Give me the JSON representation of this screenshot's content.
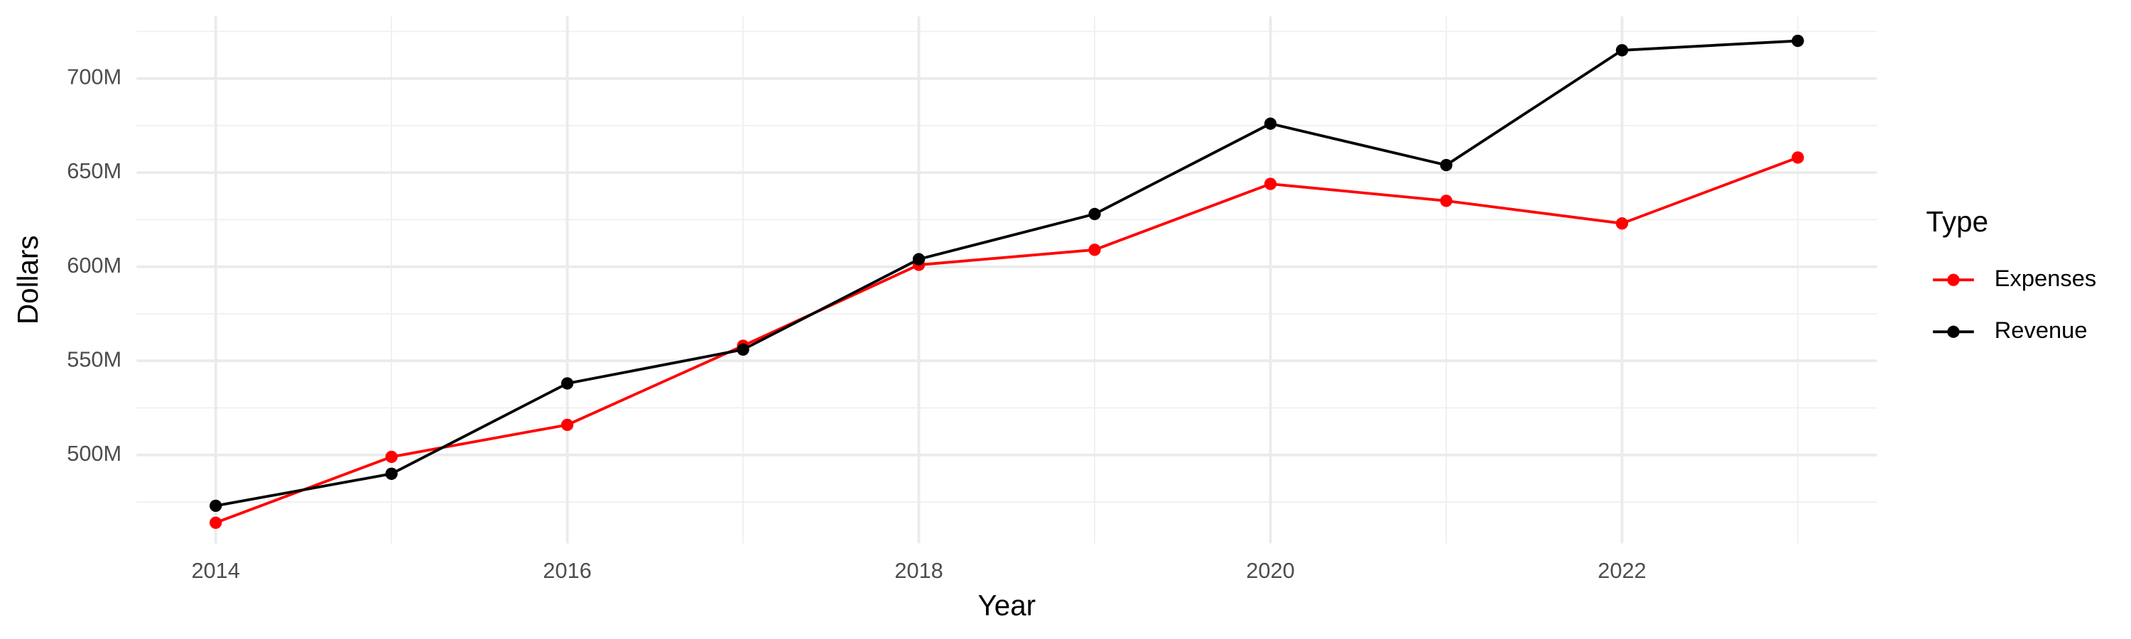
{
  "chart_data": {
    "type": "line",
    "x_label": "Year",
    "y_label": "Dollars",
    "x": [
      2014,
      2015,
      2016,
      2017,
      2018,
      2019,
      2020,
      2021,
      2022,
      2023
    ],
    "series": [
      {
        "name": "Expenses",
        "color": "#ff0000",
        "values": [
          464000000,
          499000000,
          516000000,
          558000000,
          601000000,
          609000000,
          644000000,
          635000000,
          623000000,
          658000000
        ]
      },
      {
        "name": "Revenue",
        "color": "#000000",
        "values": [
          473000000,
          490000000,
          538000000,
          556000000,
          604000000,
          628000000,
          676000000,
          654000000,
          715000000,
          720000000
        ]
      }
    ],
    "xlim": [
      2013.55,
      2023.45
    ],
    "xticks": [
      2014,
      2016,
      2018,
      2020,
      2022
    ],
    "ylim": [
      453000000,
      733000000
    ],
    "yticks": [
      {
        "value": 500000000,
        "label": "500M"
      },
      {
        "value": 550000000,
        "label": "550M"
      },
      {
        "value": 600000000,
        "label": "600M"
      },
      {
        "value": 650000000,
        "label": "650M"
      },
      {
        "value": 700000000,
        "label": "700M"
      }
    ],
    "grid": true,
    "legend_title": "Type",
    "legend_position": "right"
  }
}
